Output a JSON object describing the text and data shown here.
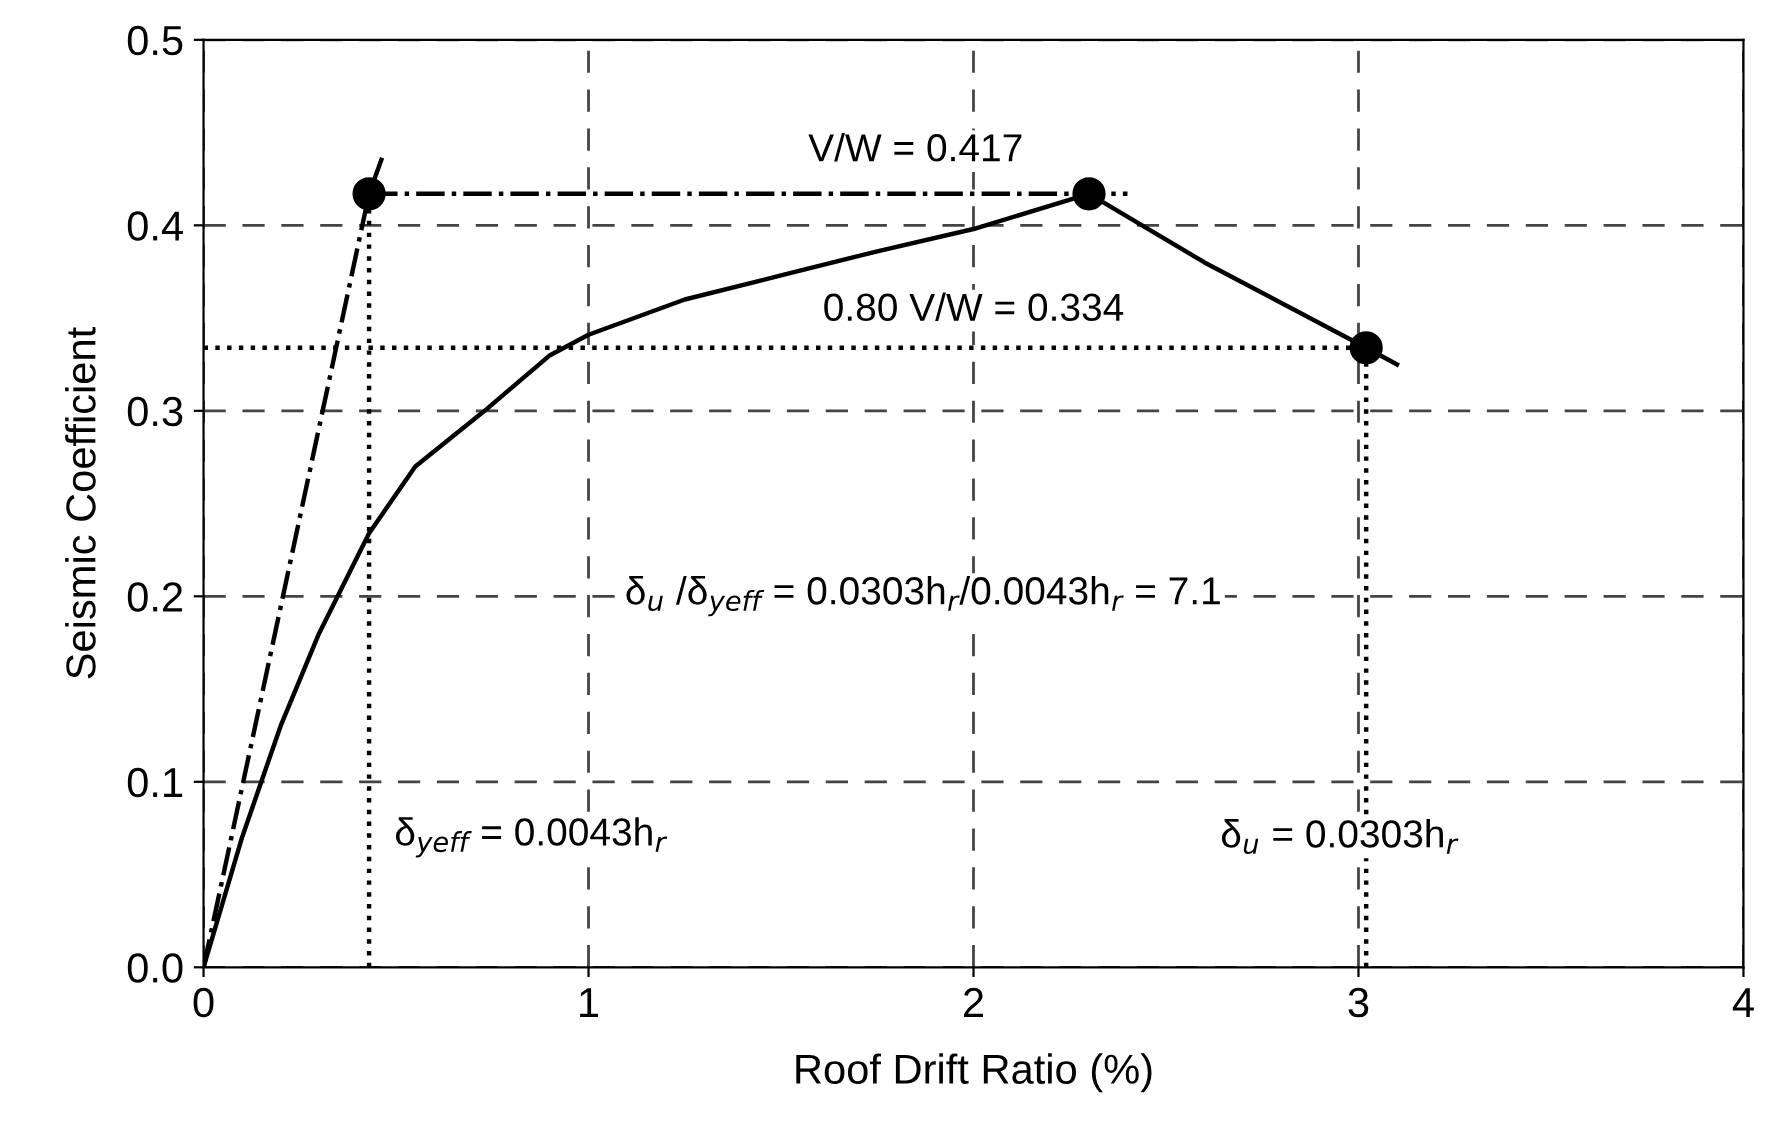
{
  "chart_data": {
    "type": "line",
    "xlabel": "Roof Drift Ratio (%)",
    "ylabel": "Seismic Coefficient",
    "xlim": [
      0,
      4
    ],
    "ylim": [
      0,
      0.5
    ],
    "xticks": [
      0,
      1,
      2,
      3,
      4
    ],
    "yticks": [
      {
        "value": 0,
        "label": "0.0"
      },
      0.1,
      0.2,
      0.3,
      0.4,
      0.5
    ],
    "grid": true,
    "legend": false,
    "series": [
      {
        "color": "#000000",
        "line_style": "solid",
        "x": [
          0,
          0.05,
          0.1,
          0.2,
          0.3,
          0.43,
          0.55,
          0.73,
          0.9,
          1.0,
          1.25,
          1.5,
          1.75,
          2.0,
          2.3,
          2.6,
          3.02,
          3.1
        ],
        "values": [
          0,
          0.035,
          0.07,
          0.13,
          0.18,
          0.234,
          0.27,
          0.3,
          0.33,
          0.341,
          0.36,
          0.373,
          0.386,
          0.398,
          0.417,
          0.38,
          0.334,
          0.325
        ]
      },
      {
        "type": "line",
        "color": "#000000",
        "line_style": "dashdot",
        "x": [
          0,
          0.43,
          0.47
        ],
        "values": [
          0,
          0.417,
          0.44
        ]
      },
      {
        "type": "line",
        "color": "#000000",
        "line_style": "dashdot",
        "x": [
          0.43,
          2.4
        ],
        "values": [
          0.417,
          0.417
        ]
      },
      {
        "type": "line",
        "color": "#000000",
        "line_style": "dotted",
        "x": [
          0.43,
          0.43
        ],
        "values": [
          0,
          0.417
        ]
      },
      {
        "type": "line",
        "color": "#000000",
        "line_style": "dotted",
        "x": [
          3.02,
          3.02
        ],
        "values": [
          0,
          0.334
        ]
      },
      {
        "type": "line",
        "color": "#000000",
        "line_style": "dotted",
        "x": [
          0,
          3.02
        ],
        "values": [
          0.334,
          0.334
        ]
      },
      {
        "type": "scatter",
        "color": "#000000",
        "marker": "circle",
        "x": [
          0.43,
          2.3,
          3.02
        ],
        "values": [
          0.417,
          0.417,
          0.334
        ]
      }
    ],
    "annotations": [
      "V/W = 0.417",
      "0.80 V/W = 0.334",
      "δ$_{u}$ /δ$_{yeff}$ = 0.0303h$_{r}$/0.0043h$_{r}$ = 7.1",
      "δ$_{yeff}$ = 0.0043h$_{r}$",
      "δ$_{u}$ = 0.0303h$_{r}$"
    ]
  }
}
